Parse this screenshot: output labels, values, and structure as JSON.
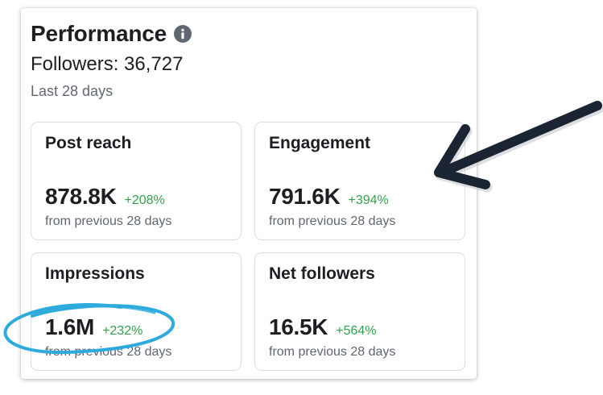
{
  "header": {
    "title": "Performance",
    "followers_text": "Followers: 36,727",
    "period": "Last 28 days"
  },
  "cards": [
    {
      "title": "Post reach",
      "value": "878.8K",
      "change": "+208%",
      "subtitle": "from previous 28 days"
    },
    {
      "title": "Engagement",
      "value": "791.6K",
      "change": "+394%",
      "subtitle": "from previous 28 days"
    },
    {
      "title": "Impressions",
      "value": "1.6M",
      "change": "+232%",
      "subtitle": "from previous 28 days"
    },
    {
      "title": "Net followers",
      "value": "16.5K",
      "change": "+564%",
      "subtitle": "from previous 28 days"
    }
  ],
  "colors": {
    "positive_change": "#31a24c",
    "muted_text": "#606770",
    "annotation_arrow": "#1b2432",
    "annotation_circle": "#2eaadc"
  },
  "icons": {
    "info": "info-icon",
    "arrow": "arrow-annotation",
    "circle": "circle-annotation"
  }
}
